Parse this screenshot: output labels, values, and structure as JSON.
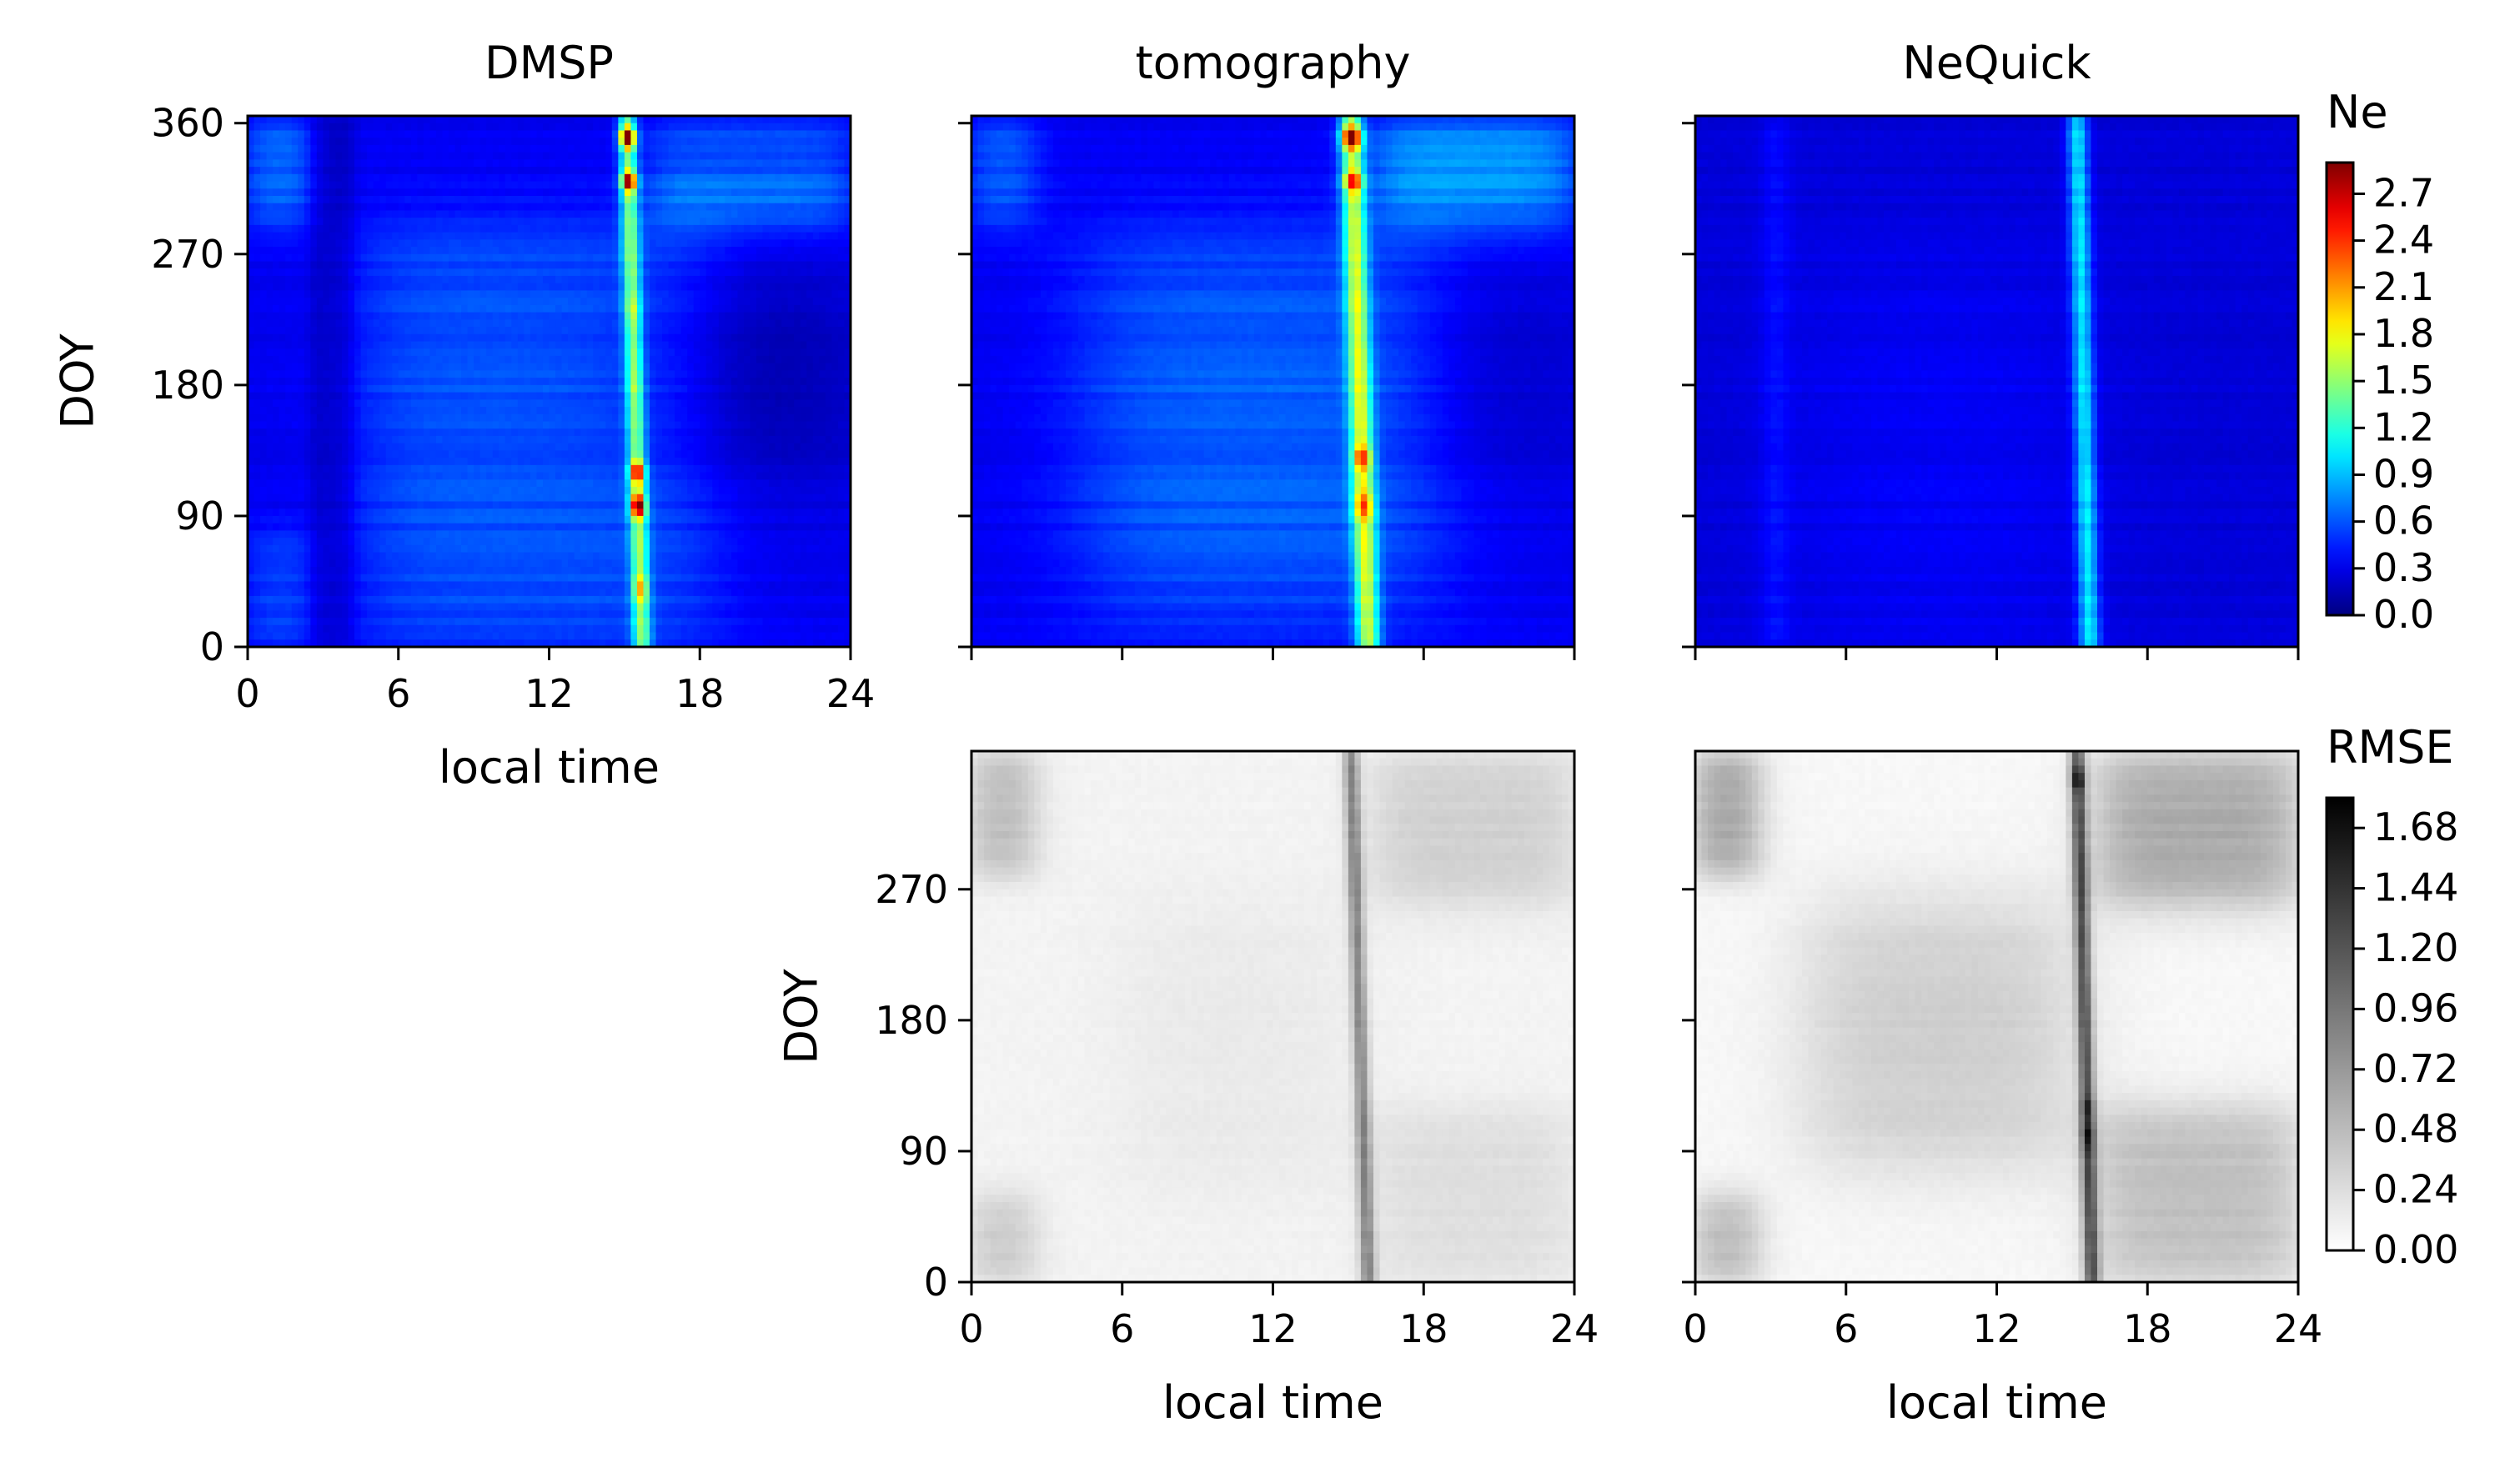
{
  "chart_data": [
    {
      "type": "heatmap",
      "id": "ne-dmsp",
      "title": "DMSP",
      "xlabel": "local time",
      "ylabel": "DOY",
      "xlim": [
        0,
        24
      ],
      "ylim": [
        0,
        365
      ],
      "xticks": [
        0,
        6,
        12,
        18,
        24
      ],
      "yticks": [
        0,
        90,
        180,
        270,
        360
      ],
      "colormap": "jet",
      "vmax": 2.9,
      "base_level": 0.32,
      "bands": [
        {
          "x": [
            4.5,
            18.5
          ],
          "y": [
            0,
            290
          ],
          "value": 0.28,
          "soft": 2.0
        },
        {
          "x": [
            0,
            2.5
          ],
          "y": [
            0,
            80
          ],
          "value": 0.22,
          "soft": 0.8
        },
        {
          "x": [
            0,
            2.5
          ],
          "y": [
            290,
            365
          ],
          "value": 0.35,
          "soft": 0.8
        },
        {
          "x": [
            16,
            24
          ],
          "y": [
            290,
            330
          ],
          "value": 0.42,
          "soft": 1.0
        },
        {
          "x": [
            16,
            24
          ],
          "y": [
            340,
            365
          ],
          "value": 0.3,
          "soft": 1.0
        },
        {
          "x": [
            16,
            24
          ],
          "y": [
            120,
            250
          ],
          "value": -0.25,
          "soft": 3.0
        },
        {
          "x": [
            2.5,
            4.2
          ],
          "y": [
            0,
            365
          ],
          "value": -0.15,
          "soft": 0.3
        }
      ],
      "peak_line": {
        "x_at_doy0": 15.7,
        "x_at_doy365": 15.1,
        "width": 0.35,
        "value": 1.0
      },
      "hotspots": [
        {
          "doy": 350,
          "value": 2.8
        },
        {
          "doy": 320,
          "value": 2.6
        },
        {
          "doy": 120,
          "value": 2.3
        },
        {
          "doy": 97,
          "value": 2.7
        },
        {
          "doy": 40,
          "value": 1.6
        },
        {
          "doy": 230,
          "value": 1.2
        },
        {
          "doy": 180,
          "value": 1.1
        }
      ]
    },
    {
      "type": "heatmap",
      "id": "ne-tomography",
      "title": "tomography",
      "xlabel": "",
      "ylabel": "",
      "xlim": [
        0,
        24
      ],
      "ylim": [
        0,
        365
      ],
      "xticks": [
        0,
        6,
        12,
        18,
        24
      ],
      "yticks": [
        0,
        90,
        180,
        270,
        360
      ],
      "colormap": "jet",
      "vmax": 2.9,
      "base_level": 0.32,
      "bands": [
        {
          "x": [
            4.5,
            18.5
          ],
          "y": [
            20,
            280
          ],
          "value": 0.32,
          "soft": 2.5
        },
        {
          "x": [
            16,
            24
          ],
          "y": [
            290,
            365
          ],
          "value": 0.5,
          "soft": 1.2
        },
        {
          "x": [
            0,
            2.5
          ],
          "y": [
            290,
            365
          ],
          "value": 0.3,
          "soft": 0.8
        },
        {
          "x": [
            18,
            24
          ],
          "y": [
            120,
            250
          ],
          "value": -0.15,
          "soft": 3.0
        }
      ],
      "peak_line": {
        "x_at_doy0": 15.8,
        "x_at_doy365": 15.1,
        "width": 0.45,
        "value": 1.2
      },
      "hotspots": [
        {
          "doy": 350,
          "value": 2.8
        },
        {
          "doy": 320,
          "value": 2.2
        },
        {
          "doy": 130,
          "value": 2.0
        },
        {
          "doy": 97,
          "value": 1.9
        }
      ]
    },
    {
      "type": "heatmap",
      "id": "ne-nequick",
      "title": "NeQuick",
      "xlabel": "",
      "ylabel": "",
      "xlim": [
        0,
        24
      ],
      "ylim": [
        0,
        365
      ],
      "xticks": [
        0,
        6,
        12,
        18,
        24
      ],
      "yticks": [
        0,
        90,
        180,
        270,
        360
      ],
      "colormap": "jet",
      "vmax": 2.9,
      "base_level": 0.25,
      "bands": [
        {
          "x": [
            4.0,
            15.0
          ],
          "y": [
            0,
            260
          ],
          "value": 0.1,
          "soft": 3.0
        },
        {
          "x": [
            2.8,
            3.6
          ],
          "y": [
            0,
            365
          ],
          "value": 0.15,
          "soft": 0.4
        }
      ],
      "peak_line": {
        "x_at_doy0": 15.7,
        "x_at_doy365": 15.2,
        "width": 0.4,
        "value": 0.75
      },
      "hotspots": []
    },
    {
      "type": "heatmap",
      "id": "rmse-tomography",
      "title": "",
      "xlabel": "local time",
      "ylabel": "DOY",
      "xlim": [
        0,
        24
      ],
      "ylim": [
        0,
        365
      ],
      "xticks": [
        0,
        6,
        12,
        18,
        24
      ],
      "yticks": [
        0,
        90,
        180,
        270
      ],
      "colormap": "gray_r",
      "vmax": 1.8,
      "base_level": 0.08,
      "bands": [
        {
          "x": [
            0,
            2.5
          ],
          "y": [
            280,
            365
          ],
          "value": 0.4,
          "soft": 0.8
        },
        {
          "x": [
            0,
            2.5
          ],
          "y": [
            0,
            60
          ],
          "value": 0.3,
          "soft": 0.8
        },
        {
          "x": [
            16,
            24
          ],
          "y": [
            260,
            365
          ],
          "value": 0.25,
          "soft": 1.2
        },
        {
          "x": [
            16,
            24
          ],
          "y": [
            0,
            120
          ],
          "value": 0.15,
          "soft": 1.2
        },
        {
          "x": [
            6,
            15
          ],
          "y": [
            60,
            260
          ],
          "value": 0.07,
          "soft": 2.0
        }
      ],
      "peak_line": {
        "x_at_doy0": 15.8,
        "x_at_doy365": 15.1,
        "width": 0.3,
        "value": 0.75
      },
      "hotspots": []
    },
    {
      "type": "heatmap",
      "id": "rmse-nequick",
      "title": "",
      "xlabel": "local time",
      "ylabel": "",
      "xlim": [
        0,
        24
      ],
      "ylim": [
        0,
        365
      ],
      "xticks": [
        0,
        6,
        12,
        18,
        24
      ],
      "yticks": [
        0,
        90,
        180,
        270
      ],
      "colormap": "gray_r",
      "vmax": 1.8,
      "base_level": 0.05,
      "bands": [
        {
          "x": [
            4.5,
            15
          ],
          "y": [
            80,
            260
          ],
          "value": 0.3,
          "soft": 2.0
        },
        {
          "x": [
            0,
            2.5
          ],
          "y": [
            280,
            365
          ],
          "value": 0.6,
          "soft": 0.8
        },
        {
          "x": [
            0,
            2.5
          ],
          "y": [
            0,
            60
          ],
          "value": 0.45,
          "soft": 0.8
        },
        {
          "x": [
            16,
            24
          ],
          "y": [
            260,
            365
          ],
          "value": 0.55,
          "soft": 1.2
        },
        {
          "x": [
            16,
            24
          ],
          "y": [
            0,
            120
          ],
          "value": 0.4,
          "soft": 1.2
        }
      ],
      "peak_line": {
        "x_at_doy0": 15.8,
        "x_at_doy365": 15.2,
        "width": 0.3,
        "value": 1.1
      },
      "hotspots": [
        {
          "doy": 345,
          "value": 1.7
        },
        {
          "doy": 100,
          "value": 1.5
        },
        {
          "doy": 120,
          "value": 1.4
        }
      ]
    }
  ],
  "colorbars": [
    {
      "id": "ne-colorbar",
      "label": "Ne",
      "colormap": "jet",
      "min": 0.0,
      "max": 2.9,
      "ticks": [
        "0.0",
        "0.3",
        "0.6",
        "0.9",
        "1.2",
        "1.5",
        "1.8",
        "2.1",
        "2.4",
        "2.7"
      ]
    },
    {
      "id": "rmse-colorbar",
      "label": "RMSE",
      "colormap": "gray_r",
      "min": 0.0,
      "max": 1.8,
      "ticks": [
        "0.00",
        "0.24",
        "0.48",
        "0.72",
        "0.96",
        "1.20",
        "1.44",
        "1.68"
      ]
    }
  ]
}
